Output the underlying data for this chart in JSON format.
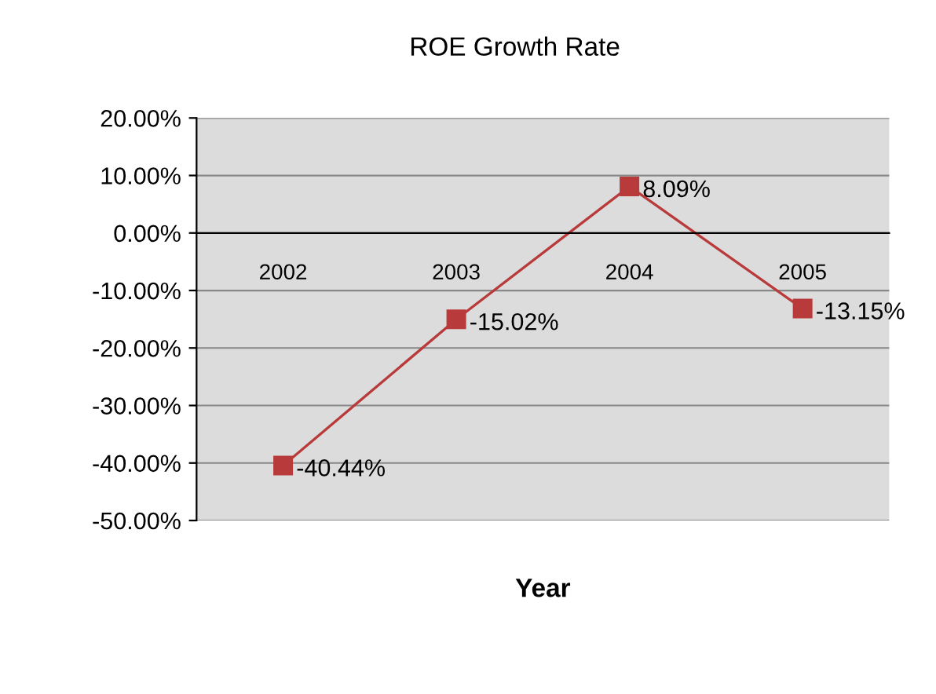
{
  "chart_data": {
    "type": "line",
    "title": "ROE Growth Rate",
    "xlabel": "Year",
    "categories": [
      "2002",
      "2003",
      "2004",
      "2005"
    ],
    "series": [
      {
        "color": "#b83a3a",
        "values": [
          -40.44,
          -15.02,
          8.09,
          -13.15
        ],
        "value_labels": [
          "-40.44%",
          "-15.02%",
          "8.09%",
          "-13.15%"
        ]
      }
    ],
    "ylim": [
      -50,
      20
    ],
    "yticks": [
      {
        "value": -50,
        "label": "-50.00%"
      },
      {
        "value": -40,
        "label": "-40.00%"
      },
      {
        "value": -30,
        "label": "-30.00%"
      },
      {
        "value": -20,
        "label": "-20.00%"
      },
      {
        "value": -10,
        "label": "-10.00%"
      },
      {
        "value": 0,
        "label": "0.00%"
      },
      {
        "value": 10,
        "label": "10.00%"
      },
      {
        "value": 20,
        "label": "20.00%"
      }
    ],
    "grid": "y",
    "marker": "square",
    "legend": false
  }
}
